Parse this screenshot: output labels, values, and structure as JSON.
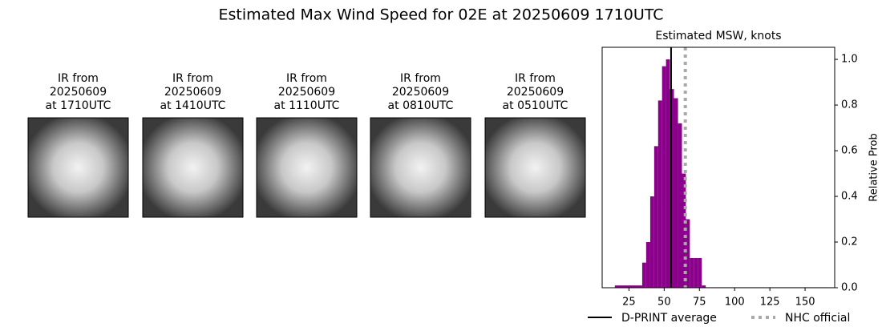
{
  "title": "Estimated Max Wind Speed for 02E at 20250609 1710UTC",
  "panels": [
    {
      "title": [
        "IR from",
        "20250609",
        "at 1710UTC"
      ]
    },
    {
      "title": [
        "IR from",
        "20250609",
        "at 1410UTC"
      ]
    },
    {
      "title": [
        "IR from",
        "20250609",
        "at 1110UTC"
      ]
    },
    {
      "title": [
        "IR from",
        "20250609",
        "at 0810UTC"
      ]
    },
    {
      "title": [
        "IR from",
        "20250609",
        "at 0510UTC"
      ]
    }
  ],
  "chart_data": {
    "type": "histogram",
    "title": "Estimated MSW, knots",
    "y_label": "Relative Prob",
    "color": "#8b008b",
    "bins": [
      15,
      34.4,
      37.2,
      40.1,
      42.9,
      45.7,
      48.5,
      51.3,
      54.1,
      56.9,
      59.8,
      62.6,
      65.4,
      68.2,
      71.0,
      73.8,
      76.7,
      79.5,
      170
    ],
    "values": [
      0.01,
      0.11,
      0.2,
      0.4,
      0.62,
      0.82,
      0.97,
      1.0,
      0.87,
      0.83,
      0.72,
      0.5,
      0.3,
      0.13,
      0.13,
      0.13,
      0.01,
      0.002
    ],
    "xlim": [
      6,
      171
    ],
    "xticks": [
      25,
      50,
      75,
      100,
      125,
      150
    ],
    "ylim": [
      0,
      1.053
    ],
    "yticks": [
      {
        "value": 0,
        "label": "0.0"
      },
      {
        "value": 0.2,
        "label": "0.2"
      },
      {
        "value": 0.4,
        "label": "0.4"
      },
      {
        "value": 0.6,
        "label": "0.6"
      },
      {
        "value": 0.8,
        "label": "0.8"
      },
      {
        "value": 1,
        "label": "1.0"
      }
    ],
    "vlines": [
      {
        "name": "D-PRINT average",
        "value": 54.9,
        "color": "#000000",
        "style": "solid"
      },
      {
        "name": "NHC official",
        "value": 65,
        "color": "#a9a9a9",
        "style": "dotted"
      }
    ]
  }
}
